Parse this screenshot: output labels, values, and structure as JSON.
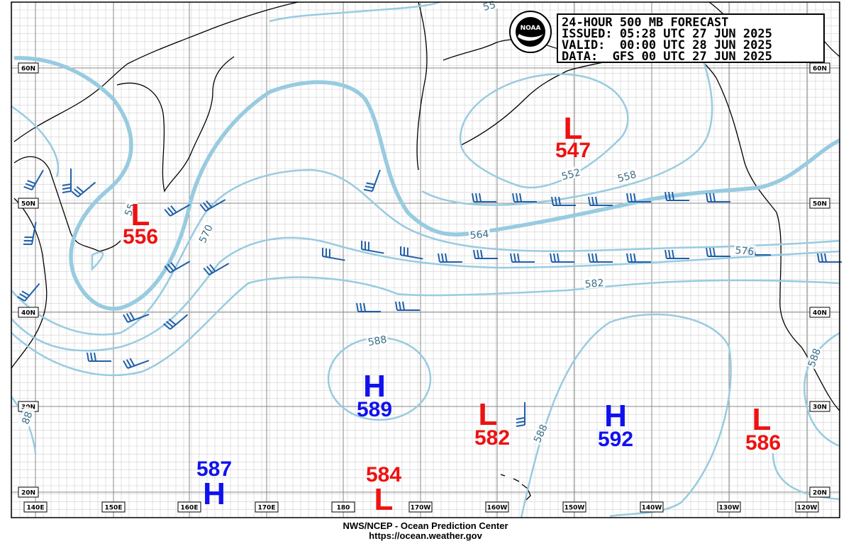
{
  "header": {
    "title": "24-HOUR 500 MB FORECAST",
    "issued": "ISSUED: 05:28 UTC 27 JUN 2025",
    "valid": "VALID:  00:00 UTC 28 JUN 2025",
    "data": "DATA:  GFS 00 UTC 27 JUN 2025"
  },
  "logo": "NOAA",
  "latitude_labels": [
    "60N",
    "50N",
    "40N",
    "30N",
    "20N"
  ],
  "longitude_labels": [
    "140E",
    "150E",
    "160E",
    "170E",
    "180",
    "170W",
    "160W",
    "150W",
    "140W",
    "130W",
    "120W"
  ],
  "centers": [
    {
      "symbol": "L",
      "value": 556
    },
    {
      "symbol": "L",
      "value": 547
    },
    {
      "symbol": "H",
      "value": 589
    },
    {
      "symbol": "L",
      "value": 582
    },
    {
      "symbol": "H",
      "value": 592
    },
    {
      "symbol": "L",
      "value": 586
    },
    {
      "symbol": "H",
      "value": 587
    },
    {
      "symbol": "L",
      "value": 584
    }
  ],
  "contour_labels": [
    "552",
    "558",
    "564",
    "570",
    "576",
    "582",
    "588",
    "588",
    "588",
    "55",
    "88",
    "55"
  ],
  "footer": {
    "agency": "NWS/NCEP - Ocean Prediction Center",
    "url": "https://ocean.weather.gov"
  }
}
